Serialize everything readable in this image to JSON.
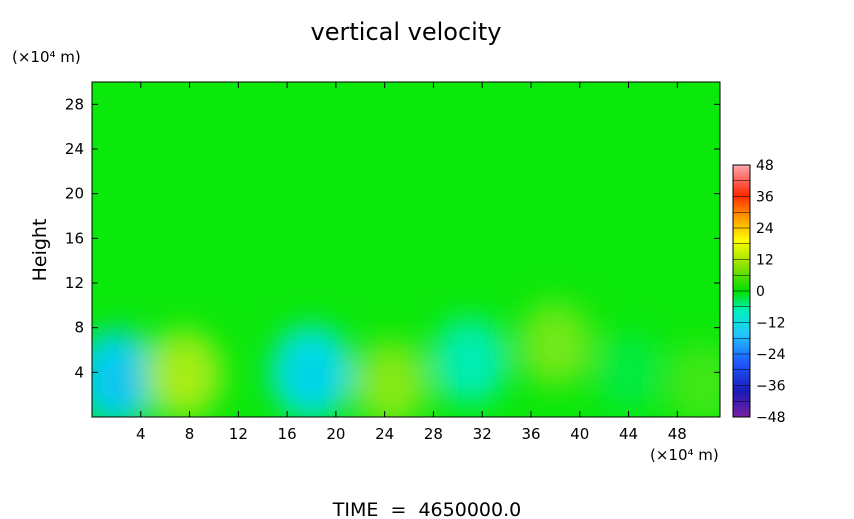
{
  "chart_data": {
    "type": "heatmap",
    "title": "vertical velocity",
    "ylabel": "Height",
    "y_unit_label": "(×10⁴ m)",
    "x_unit_label": "(×10⁴ m)",
    "footer": "TIME  =  4650000.0",
    "xlim": [
      0,
      51.5
    ],
    "ylim": [
      0,
      30
    ],
    "x_ticks": [
      4,
      8,
      12,
      16,
      20,
      24,
      28,
      32,
      36,
      40,
      44,
      48
    ],
    "y_ticks": [
      4,
      8,
      12,
      16,
      20,
      24,
      28
    ],
    "colorbar": {
      "ticks": [
        48,
        36,
        24,
        12,
        0,
        -12,
        -24,
        -36,
        -48
      ],
      "range": [
        -48,
        48
      ]
    },
    "field_features": [
      {
        "x": 2,
        "y": 3.5,
        "value": -14
      },
      {
        "x": 7.5,
        "y": 3.8,
        "value": 10
      },
      {
        "x": 18,
        "y": 4,
        "value": -13
      },
      {
        "x": 24.5,
        "y": 3,
        "value": 8
      },
      {
        "x": 31,
        "y": 5,
        "value": -9
      },
      {
        "x": 38,
        "y": 6.5,
        "value": 7
      },
      {
        "x": 44,
        "y": 4,
        "value": -3
      },
      {
        "x": 50,
        "y": 3,
        "value": 4
      }
    ],
    "background_value": 0
  }
}
